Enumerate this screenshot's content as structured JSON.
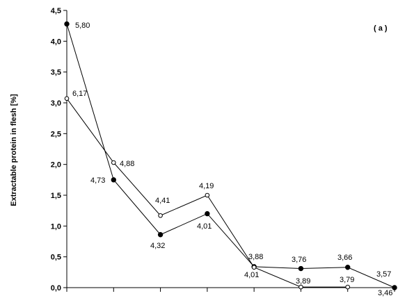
{
  "chart_data": {
    "type": "line",
    "panel_label": "( a )",
    "ylabel": "Extractable protein in flesh [%]",
    "ylim": [
      0,
      4.5
    ],
    "yticks": [
      "0,0",
      "0,5",
      "1,0",
      "1,5",
      "2,0",
      "2,5",
      "3,0",
      "3,5",
      "4,0",
      "4,5"
    ],
    "ytick_values": [
      0,
      0.5,
      1.0,
      1.5,
      2.0,
      2.5,
      3.0,
      3.5,
      4.0,
      4.5
    ],
    "x": [
      0,
      1,
      2,
      3,
      4,
      5,
      6,
      7
    ],
    "xlim": [
      0,
      7
    ],
    "grid": false,
    "series": [
      {
        "marker": "filled-circle",
        "color": "#000000",
        "values": [
          4.28,
          1.75,
          0.86,
          1.2,
          0.34,
          0.31,
          0.33,
          0.0
        ],
        "labels": [
          "5,80",
          "4,73",
          "4,32",
          "4,01",
          "4,01",
          "3,76",
          "3,66",
          "3,46"
        ]
      },
      {
        "marker": "open-circle",
        "color": "#000000",
        "values": [
          3.07,
          2.03,
          1.17,
          1.5,
          0.33,
          0.01,
          0.01,
          null
        ],
        "labels": [
          "6,17",
          "4,88",
          "4,41",
          "4,19",
          "3,88",
          "3,89",
          "3,79",
          "3,57"
        ]
      }
    ]
  }
}
